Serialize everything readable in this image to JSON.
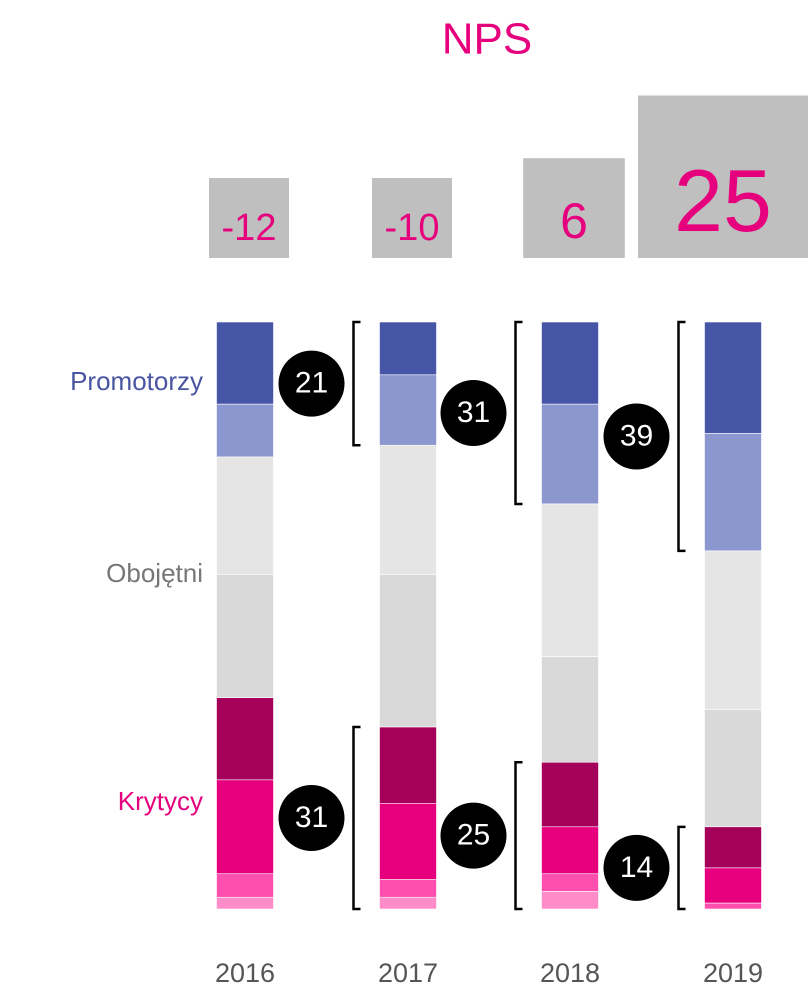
{
  "chart_data": {
    "type": "stacked_bar",
    "title": "NPS",
    "categories": [
      "2016",
      "2017",
      "2018",
      "2019"
    ],
    "nps": [
      -12,
      -10,
      6,
      25
    ],
    "group_labels": [
      "Promotorzy",
      "Obojętni",
      "Krytycy"
    ],
    "group_colors": [
      "#4a55a2",
      "#777777",
      "#e6007e"
    ],
    "ylim": [
      0,
      100
    ],
    "series": [
      {
        "color": "#4655a5",
        "values": [
          14,
          9,
          14,
          19
        ]
      },
      {
        "color": "#8c97cf",
        "values": [
          9,
          12,
          17,
          20
        ]
      },
      {
        "color": "#e5e5e5",
        "values": [
          20,
          22,
          26,
          27
        ]
      },
      {
        "color": "#d9d9d9",
        "values": [
          21,
          26,
          18,
          20
        ]
      },
      {
        "color": "#a5005a",
        "values": [
          14,
          13,
          11,
          7
        ]
      },
      {
        "color": "#e6007e",
        "values": [
          16,
          13,
          8,
          6
        ]
      },
      {
        "color": "#ff4fae",
        "values": [
          4,
          3,
          3,
          1
        ]
      },
      {
        "color": "#ff8cc8",
        "values": [
          2,
          2,
          3,
          0
        ]
      }
    ],
    "promoter_totals": [
      null,
      21,
      31,
      39
    ],
    "critic_totals": [
      null,
      31,
      25,
      14
    ]
  }
}
